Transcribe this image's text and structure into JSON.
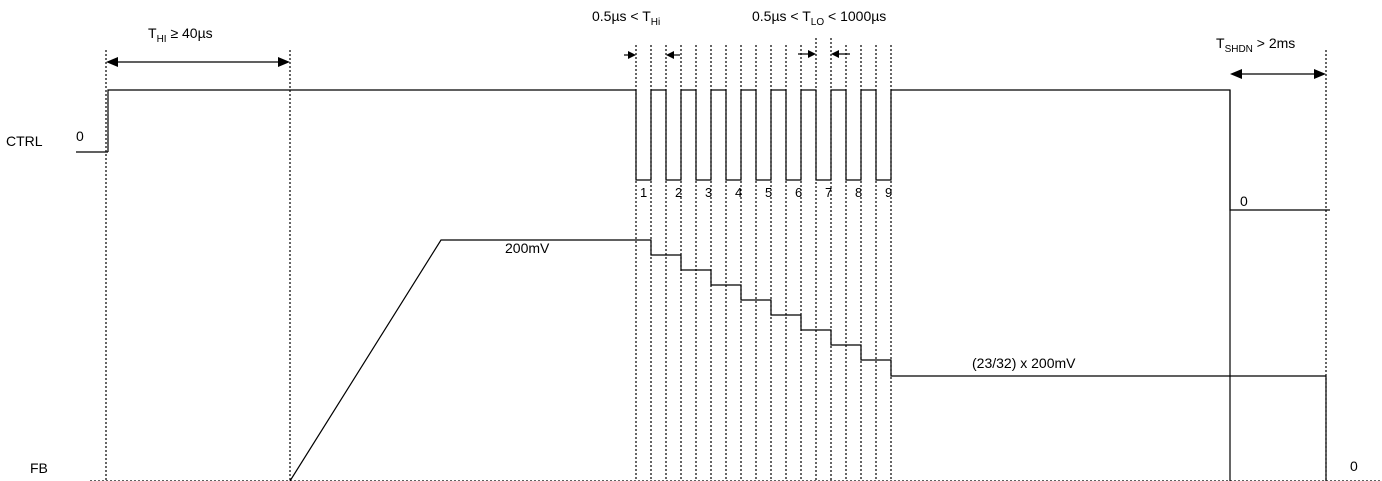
{
  "signals": {
    "ctrl": "CTRL",
    "ctrl_low": "0",
    "ctrl_low_after": "0",
    "fb": "FB",
    "fb_end": "0"
  },
  "timing": {
    "thi_T": "T",
    "thi_sub": "HI",
    "thi_rel": " ≥ 40µs",
    "thi_pulse_pre": "0.5µs < T",
    "thi_pulse_sub": "Hi",
    "tlo_pre": "0.5µs < T",
    "tlo_sub": "LO",
    "tlo_post": " < 1000µs",
    "tshdn_T": "T",
    "tshdn_sub": "SHDN",
    "tshdn_post": " > 2ms"
  },
  "pulses": [
    "1",
    "2",
    "3",
    "4",
    "5",
    "6",
    "7",
    "8",
    "9"
  ],
  "levels": {
    "fb_start": "200mV",
    "fb_final": "(23/32) x 200mV"
  }
}
